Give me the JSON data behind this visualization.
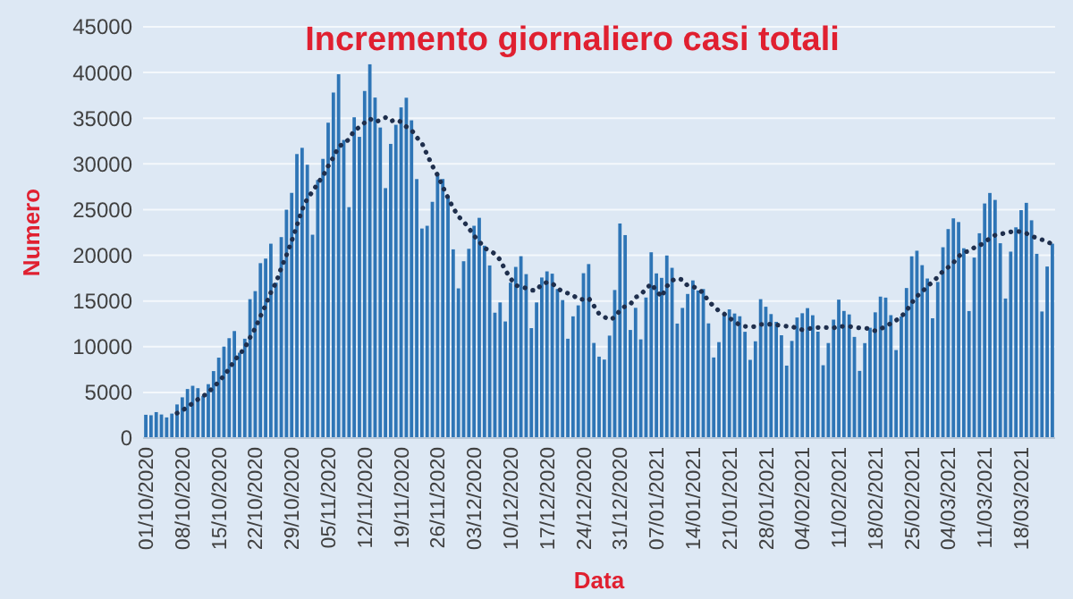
{
  "chart_data": {
    "type": "bar",
    "title": "Incremento giornaliero casi totali",
    "xlabel": "Data",
    "ylabel": "Numero",
    "categories": [
      "01/10/2020",
      null,
      null,
      null,
      null,
      null,
      null,
      "08/10/2020",
      null,
      null,
      null,
      null,
      null,
      null,
      "15/10/2020",
      null,
      null,
      null,
      null,
      null,
      null,
      "22/10/2020",
      null,
      null,
      null,
      null,
      null,
      null,
      "29/10/2020",
      null,
      null,
      null,
      null,
      null,
      null,
      "05/11/2020",
      null,
      null,
      null,
      null,
      null,
      null,
      "12/11/2020",
      null,
      null,
      null,
      null,
      null,
      null,
      "19/11/2020",
      null,
      null,
      null,
      null,
      null,
      null,
      "26/11/2020",
      null,
      null,
      null,
      null,
      null,
      null,
      "03/12/2020",
      null,
      null,
      null,
      null,
      null,
      null,
      "10/12/2020",
      null,
      null,
      null,
      null,
      null,
      null,
      "17/12/2020",
      null,
      null,
      null,
      null,
      null,
      null,
      "24/12/2020",
      null,
      null,
      null,
      null,
      null,
      null,
      "31/12/2020",
      null,
      null,
      null,
      null,
      null,
      null,
      "07/01/2021",
      null,
      null,
      null,
      null,
      null,
      null,
      "14/01/2021",
      null,
      null,
      null,
      null,
      null,
      null,
      "21/01/2021",
      null,
      null,
      null,
      null,
      null,
      null,
      "28/01/2021",
      null,
      null,
      null,
      null,
      null,
      null,
      "04/02/2021",
      null,
      null,
      null,
      null,
      null,
      null,
      "11/02/2021",
      null,
      null,
      null,
      null,
      null,
      null,
      "18/02/2021",
      null,
      null,
      null,
      null,
      null,
      null,
      "25/02/2021",
      null,
      null,
      null,
      null,
      null,
      null,
      "04/03/2021",
      null,
      null,
      null,
      null,
      null,
      null,
      "11/03/2021",
      null,
      null,
      null,
      null,
      null,
      null,
      "18/03/2021",
      null,
      null,
      null,
      null,
      null,
      null
    ],
    "series": [
      {
        "color": "#2e75b6",
        "values": [
          2550,
          2500,
          2840,
          2580,
          2260,
          2680,
          3680,
          4460,
          5370,
          5720,
          5460,
          4620,
          5900,
          7330,
          8800,
          10010,
          10930,
          11710,
          9340,
          10870,
          15200,
          16080,
          19140,
          19640,
          21270,
          17010,
          21990,
          24990,
          26830,
          31080,
          31760,
          29910,
          22250,
          28240,
          30550,
          34510,
          37810,
          39810,
          32620,
          25270,
          35100,
          32960,
          37980,
          40900,
          37260,
          33980,
          27350,
          32190,
          34280,
          36180,
          37240,
          34770,
          28340,
          22930,
          23230,
          25850,
          29000,
          28350,
          26320,
          20650,
          16380,
          19350,
          20710,
          23230,
          24100,
          21050,
          18890,
          13720,
          14840,
          12760,
          17000,
          18730,
          19900,
          17940,
          12030,
          14840,
          17570,
          18240,
          17990,
          16310,
          15100,
          10870,
          13320,
          14520,
          18040,
          19040,
          10410,
          8910,
          8590,
          11210,
          16200,
          23480,
          22210,
          11830,
          14250,
          10800,
          15380,
          20330,
          18020,
          17530,
          19980,
          18630,
          12530,
          14240,
          15770,
          17250,
          16150,
          16310,
          12550,
          8820,
          10500,
          13570,
          14080,
          13630,
          13330,
          11630,
          8560,
          10590,
          15200,
          14370,
          13570,
          12720,
          11250,
          7930,
          10630,
          13190,
          13660,
          14220,
          13440,
          11640,
          7970,
          10400,
          12960,
          15150,
          13910,
          13530,
          11070,
          7350,
          10390,
          12070,
          13760,
          15480,
          15370,
          13450,
          9630,
          13310,
          16420,
          19890,
          20500,
          18920,
          17460,
          13110,
          17080,
          20880,
          22870,
          24040,
          23640,
          20770,
          13900,
          19750,
          22410,
          25670,
          26820,
          26060,
          21320,
          15270,
          20400,
          23060,
          24940,
          25740,
          23830,
          20160,
          13850,
          18770,
          21270
        ]
      },
      {
        "type": "line",
        "color": "#1f2f4d",
        "values": [
          null,
          null,
          null,
          null,
          null,
          null,
          2730,
          3000,
          3410,
          3820,
          4230,
          4570,
          5030,
          5550,
          6170,
          6830,
          7580,
          8470,
          9150,
          9860,
          10980,
          12020,
          13320,
          14570,
          15930,
          17030,
          18620,
          20020,
          21550,
          23260,
          24990,
          26220,
          26970,
          27870,
          28660,
          29760,
          30720,
          31870,
          32260,
          32690,
          33670,
          34010,
          34510,
          34950,
          34580,
          34780,
          35080,
          34660,
          34850,
          34590,
          34070,
          33710,
          32910,
          32280,
          31000,
          29790,
          28770,
          27500,
          26290,
          25190,
          24250,
          23700,
          22970,
          22140,
          21530,
          20780,
          20530,
          20150,
          19510,
          18370,
          17480,
          16710,
          16550,
          16410,
          16170,
          16170,
          16860,
          17040,
          16930,
          16420,
          16010,
          15850,
          15630,
          15190,
          15160,
          15310,
          14470,
          13590,
          13260,
          12960,
          13200,
          13980,
          14430,
          14630,
          15400,
          15710,
          16310,
          16900,
          16120,
          15450,
          16610,
          17240,
          17490,
          17320,
          16670,
          16560,
          16360,
          15840,
          14970,
          14440,
          13910,
          13590,
          13140,
          12780,
          12350,
          12220,
          12190,
          12200,
          12430,
          12470,
          12460,
          12380,
          12320,
          12230,
          12240,
          11950,
          11850,
          11940,
          12050,
          12100,
          12110,
          12070,
          12040,
          12250,
          12210,
          12220,
          12140,
          12050,
          12050,
          11920,
          11730,
          11950,
          12210,
          12550,
          12880,
          13300,
          13920,
          14790,
          15510,
          16020,
          16590,
          17090,
          17630,
          18260,
          18690,
          19190,
          19870,
          20340,
          20450,
          20840,
          21050,
          21450,
          21850,
          22200,
          22280,
          22470,
          22560,
          22660,
          22550,
          22400,
          22080,
          21910,
          21710,
          21480,
          21220
        ]
      }
    ],
    "ylim": [
      0,
      45000
    ],
    "yticks": [
      0,
      5000,
      10000,
      15000,
      20000,
      25000,
      30000,
      35000,
      40000,
      45000
    ],
    "grid": "y",
    "line_style": "dotted"
  }
}
